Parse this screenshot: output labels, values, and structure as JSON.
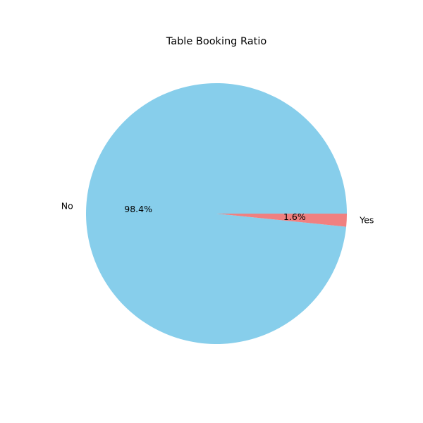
{
  "chart_data": {
    "type": "pie",
    "title": "Table Booking Ratio",
    "categories": [
      "No",
      "Yes"
    ],
    "values": [
      98.4,
      1.6
    ],
    "value_labels": [
      "98.4%",
      "1.6%"
    ],
    "colors": [
      "#87ceeb",
      "#f08080"
    ],
    "start_angle_deg": 0,
    "direction": "counterclockwise",
    "legend": "none"
  }
}
